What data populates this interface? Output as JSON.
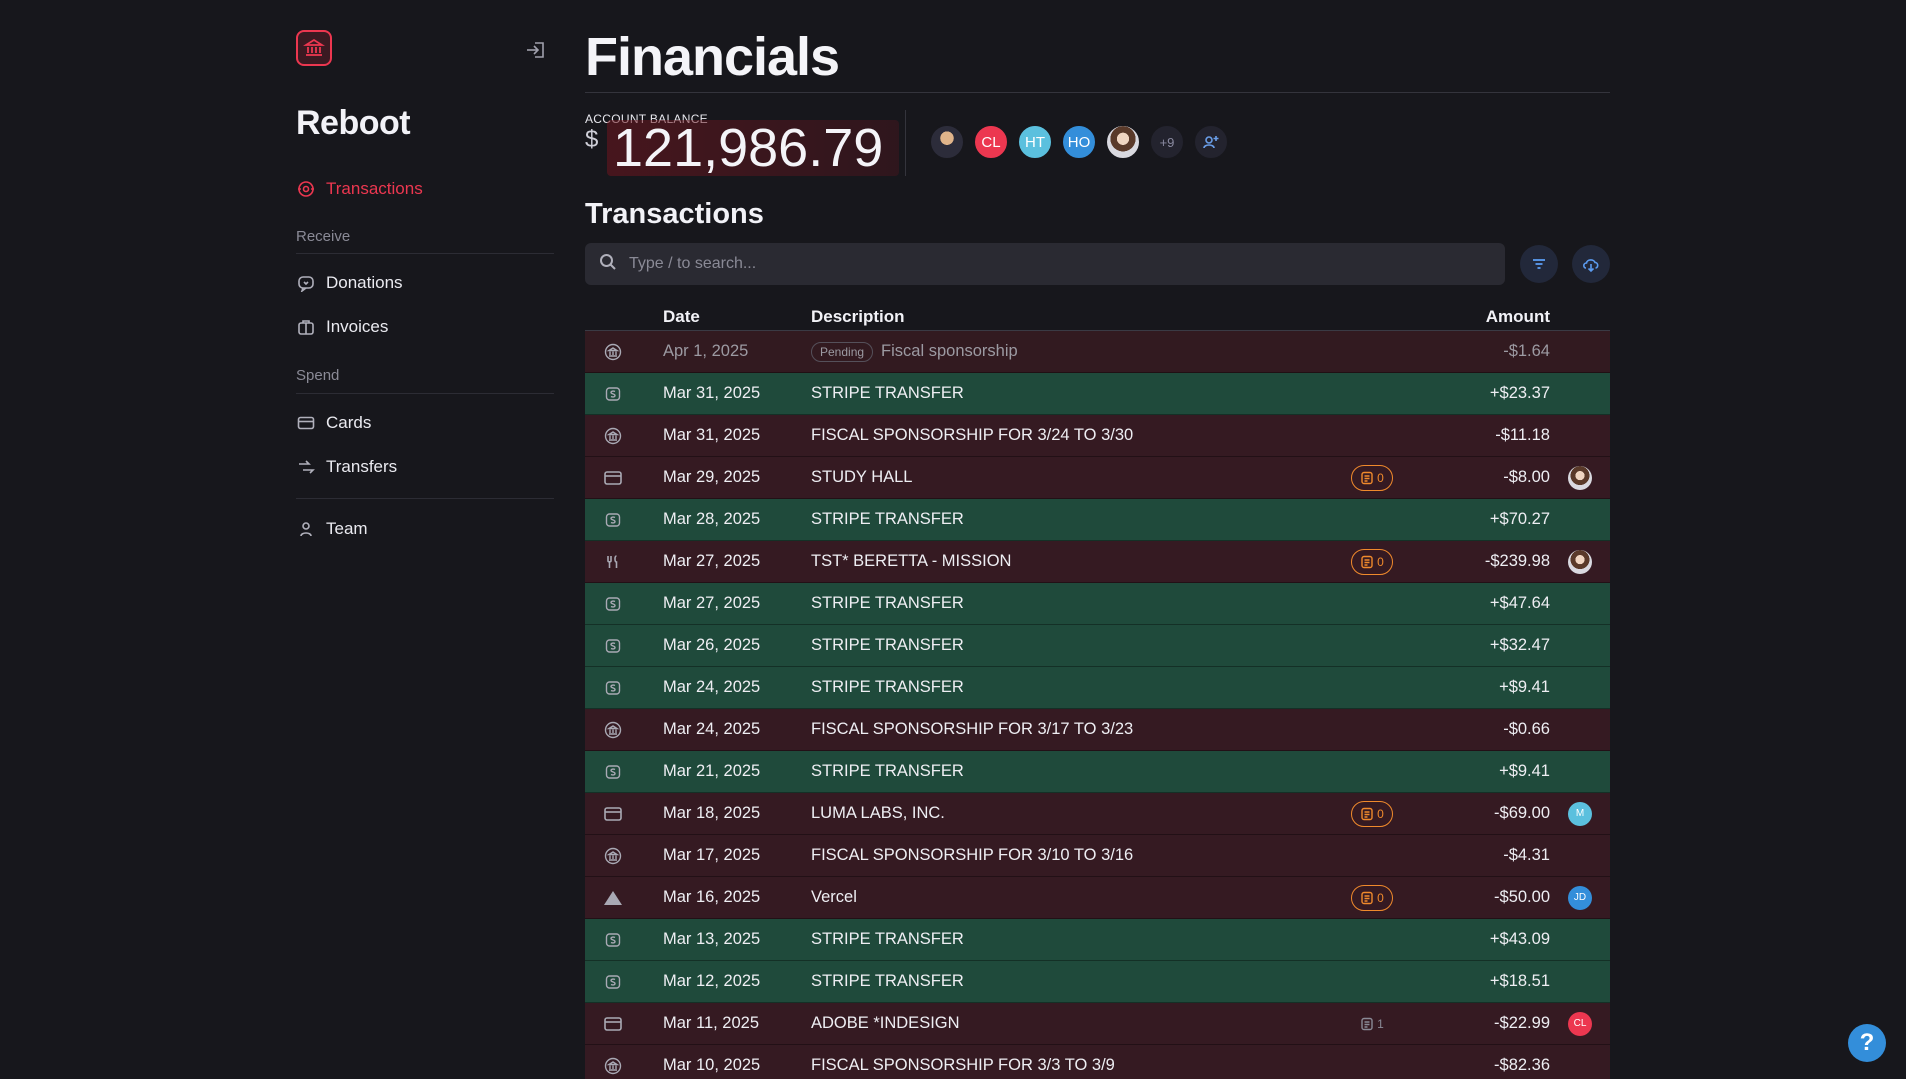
{
  "app": {
    "name": "Reboot"
  },
  "sidebar": {
    "items": [
      {
        "label": "Transactions",
        "icon": "transactions-icon",
        "active": true
      },
      {
        "label": "Donations",
        "icon": "donation-icon"
      },
      {
        "label": "Invoices",
        "icon": "invoice-icon"
      },
      {
        "label": "Cards",
        "icon": "card-icon"
      },
      {
        "label": "Transfers",
        "icon": "transfer-icon"
      },
      {
        "label": "Team",
        "icon": "team-icon"
      }
    ],
    "sections": {
      "receive": "Receive",
      "spend": "Spend"
    }
  },
  "page": {
    "title": "Financials",
    "balance_label": "ACCOUNT BALANCE",
    "currency": "$",
    "balance": "121,986.79",
    "members": [
      {
        "type": "photo"
      },
      {
        "initials": "CL",
        "color": "#ec3750"
      },
      {
        "initials": "HT",
        "color": "#5bc0de"
      },
      {
        "initials": "HO",
        "color": "#338eda"
      },
      {
        "type": "photo"
      },
      {
        "more": "+9"
      }
    ],
    "section_title": "Transactions",
    "search_placeholder": "Type / to search..."
  },
  "table": {
    "headers": {
      "date": "Date",
      "description": "Description",
      "amount": "Amount"
    },
    "rows": [
      {
        "kind": "pending",
        "icon": "bank",
        "date": "Apr 1, 2025",
        "status": "Pending",
        "desc": "Fiscal sponsorship",
        "amount": "-$1.64"
      },
      {
        "kind": "pos",
        "icon": "stripe",
        "date": "Mar 31, 2025",
        "desc": "STRIPE TRANSFER",
        "amount": "+$23.37"
      },
      {
        "kind": "neg",
        "icon": "bank",
        "date": "Mar 31, 2025",
        "desc": "FISCAL SPONSORSHIP FOR 3/24 TO 3/30",
        "amount": "-$11.18"
      },
      {
        "kind": "neg",
        "icon": "card",
        "date": "Mar 29, 2025",
        "desc": "STUDY HALL",
        "receipts": "0",
        "amount": "-$8.00",
        "user": {
          "type": "photo"
        }
      },
      {
        "kind": "pos",
        "icon": "stripe",
        "date": "Mar 28, 2025",
        "desc": "STRIPE TRANSFER",
        "amount": "+$70.27"
      },
      {
        "kind": "neg",
        "icon": "food",
        "date": "Mar 27, 2025",
        "desc": "TST* BERETTA - MISSION",
        "receipts": "0",
        "amount": "-$239.98",
        "user": {
          "type": "photo"
        }
      },
      {
        "kind": "pos",
        "icon": "stripe",
        "date": "Mar 27, 2025",
        "desc": "STRIPE TRANSFER",
        "amount": "+$47.64"
      },
      {
        "kind": "pos",
        "icon": "stripe",
        "date": "Mar 26, 2025",
        "desc": "STRIPE TRANSFER",
        "amount": "+$32.47"
      },
      {
        "kind": "pos",
        "icon": "stripe",
        "date": "Mar 24, 2025",
        "desc": "STRIPE TRANSFER",
        "amount": "+$9.41"
      },
      {
        "kind": "neg",
        "icon": "bank",
        "date": "Mar 24, 2025",
        "desc": "FISCAL SPONSORSHIP FOR 3/17 TO 3/23",
        "amount": "-$0.66"
      },
      {
        "kind": "pos",
        "icon": "stripe",
        "date": "Mar 21, 2025",
        "desc": "STRIPE TRANSFER",
        "amount": "+$9.41"
      },
      {
        "kind": "neg",
        "icon": "card",
        "date": "Mar 18, 2025",
        "desc": "LUMA LABS, INC.",
        "receipts": "0",
        "amount": "-$69.00",
        "user": {
          "initials": "M",
          "color": "#5bc0de"
        }
      },
      {
        "kind": "neg",
        "icon": "bank",
        "date": "Mar 17, 2025",
        "desc": "FISCAL SPONSORSHIP FOR 3/10 TO 3/16",
        "amount": "-$4.31"
      },
      {
        "kind": "neg",
        "icon": "vercel",
        "date": "Mar 16, 2025",
        "desc": "Vercel",
        "receipts": "0",
        "amount": "-$50.00",
        "user": {
          "initials": "JD",
          "color": "#338eda"
        }
      },
      {
        "kind": "pos",
        "icon": "stripe",
        "date": "Mar 13, 2025",
        "desc": "STRIPE TRANSFER",
        "amount": "+$43.09"
      },
      {
        "kind": "pos",
        "icon": "stripe",
        "date": "Mar 12, 2025",
        "desc": "STRIPE TRANSFER",
        "amount": "+$18.51"
      },
      {
        "kind": "neg",
        "icon": "card",
        "date": "Mar 11, 2025",
        "desc": "ADOBE *INDESIGN",
        "receipts": "1",
        "receipts_ok": true,
        "amount": "-$22.99",
        "user": {
          "initials": "CL",
          "color": "#ec3750"
        }
      },
      {
        "kind": "neg",
        "icon": "bank",
        "date": "Mar 10, 2025",
        "desc": "FISCAL SPONSORSHIP FOR 3/3 TO 3/9",
        "amount": "-$82.36"
      }
    ]
  },
  "help": {
    "label": "?"
  },
  "colors": {
    "accent": "#ec3750",
    "positive_row": "#1f4a3b",
    "negative_row": "#351a22",
    "receipt_missing": "#f08a2c",
    "info": "#338eda"
  }
}
